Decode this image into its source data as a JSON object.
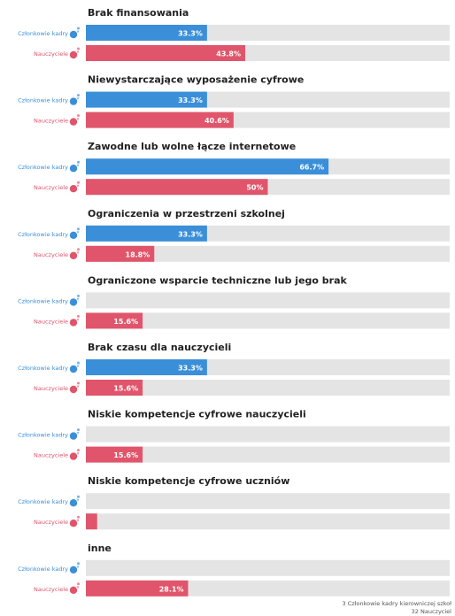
{
  "chart_data": {
    "type": "bar",
    "orientation": "horizontal",
    "xlim": [
      0,
      100
    ],
    "categories": [
      "Brak finansowania",
      "Niewystarczające wyposażenie cyfrowe",
      "Zawodne lub wolne łącze internetowe",
      "Ograniczenia w przestrzeni szkolnej",
      "Ograniczone wsparcie techniczne lub jego brak",
      "Brak czasu dla nauczycieli",
      "Niskie kompetencje cyfrowe nauczycieli",
      "Niskie kompetencje cyfrowe uczniów",
      "inne"
    ],
    "series": [
      {
        "name": "Członkowie kadry",
        "color": "#3b8fd9",
        "icon": "person-icon",
        "values": [
          33.3,
          33.3,
          66.7,
          33.3,
          0,
          33.3,
          0,
          0,
          0
        ],
        "labels": [
          "33.3%",
          "33.3%",
          "66.7%",
          "33.3%",
          "",
          "33.3%",
          "",
          "",
          ""
        ]
      },
      {
        "name": "Nauczyciele",
        "color": "#e0556b",
        "icon": "person-icon",
        "values": [
          43.8,
          40.6,
          50,
          18.8,
          15.6,
          15.6,
          15.6,
          3.1,
          28.1
        ],
        "labels": [
          "43.8%",
          "40.6%",
          "50%",
          "18.8%",
          "15.6%",
          "15.6%",
          "15.6%",
          "",
          "28.1%"
        ]
      }
    ],
    "track_color": "#e4e4e4",
    "footnote": [
      "3 Członkowie kadry kierowniczej szkoł",
      "32 Nauczyciel"
    ]
  }
}
